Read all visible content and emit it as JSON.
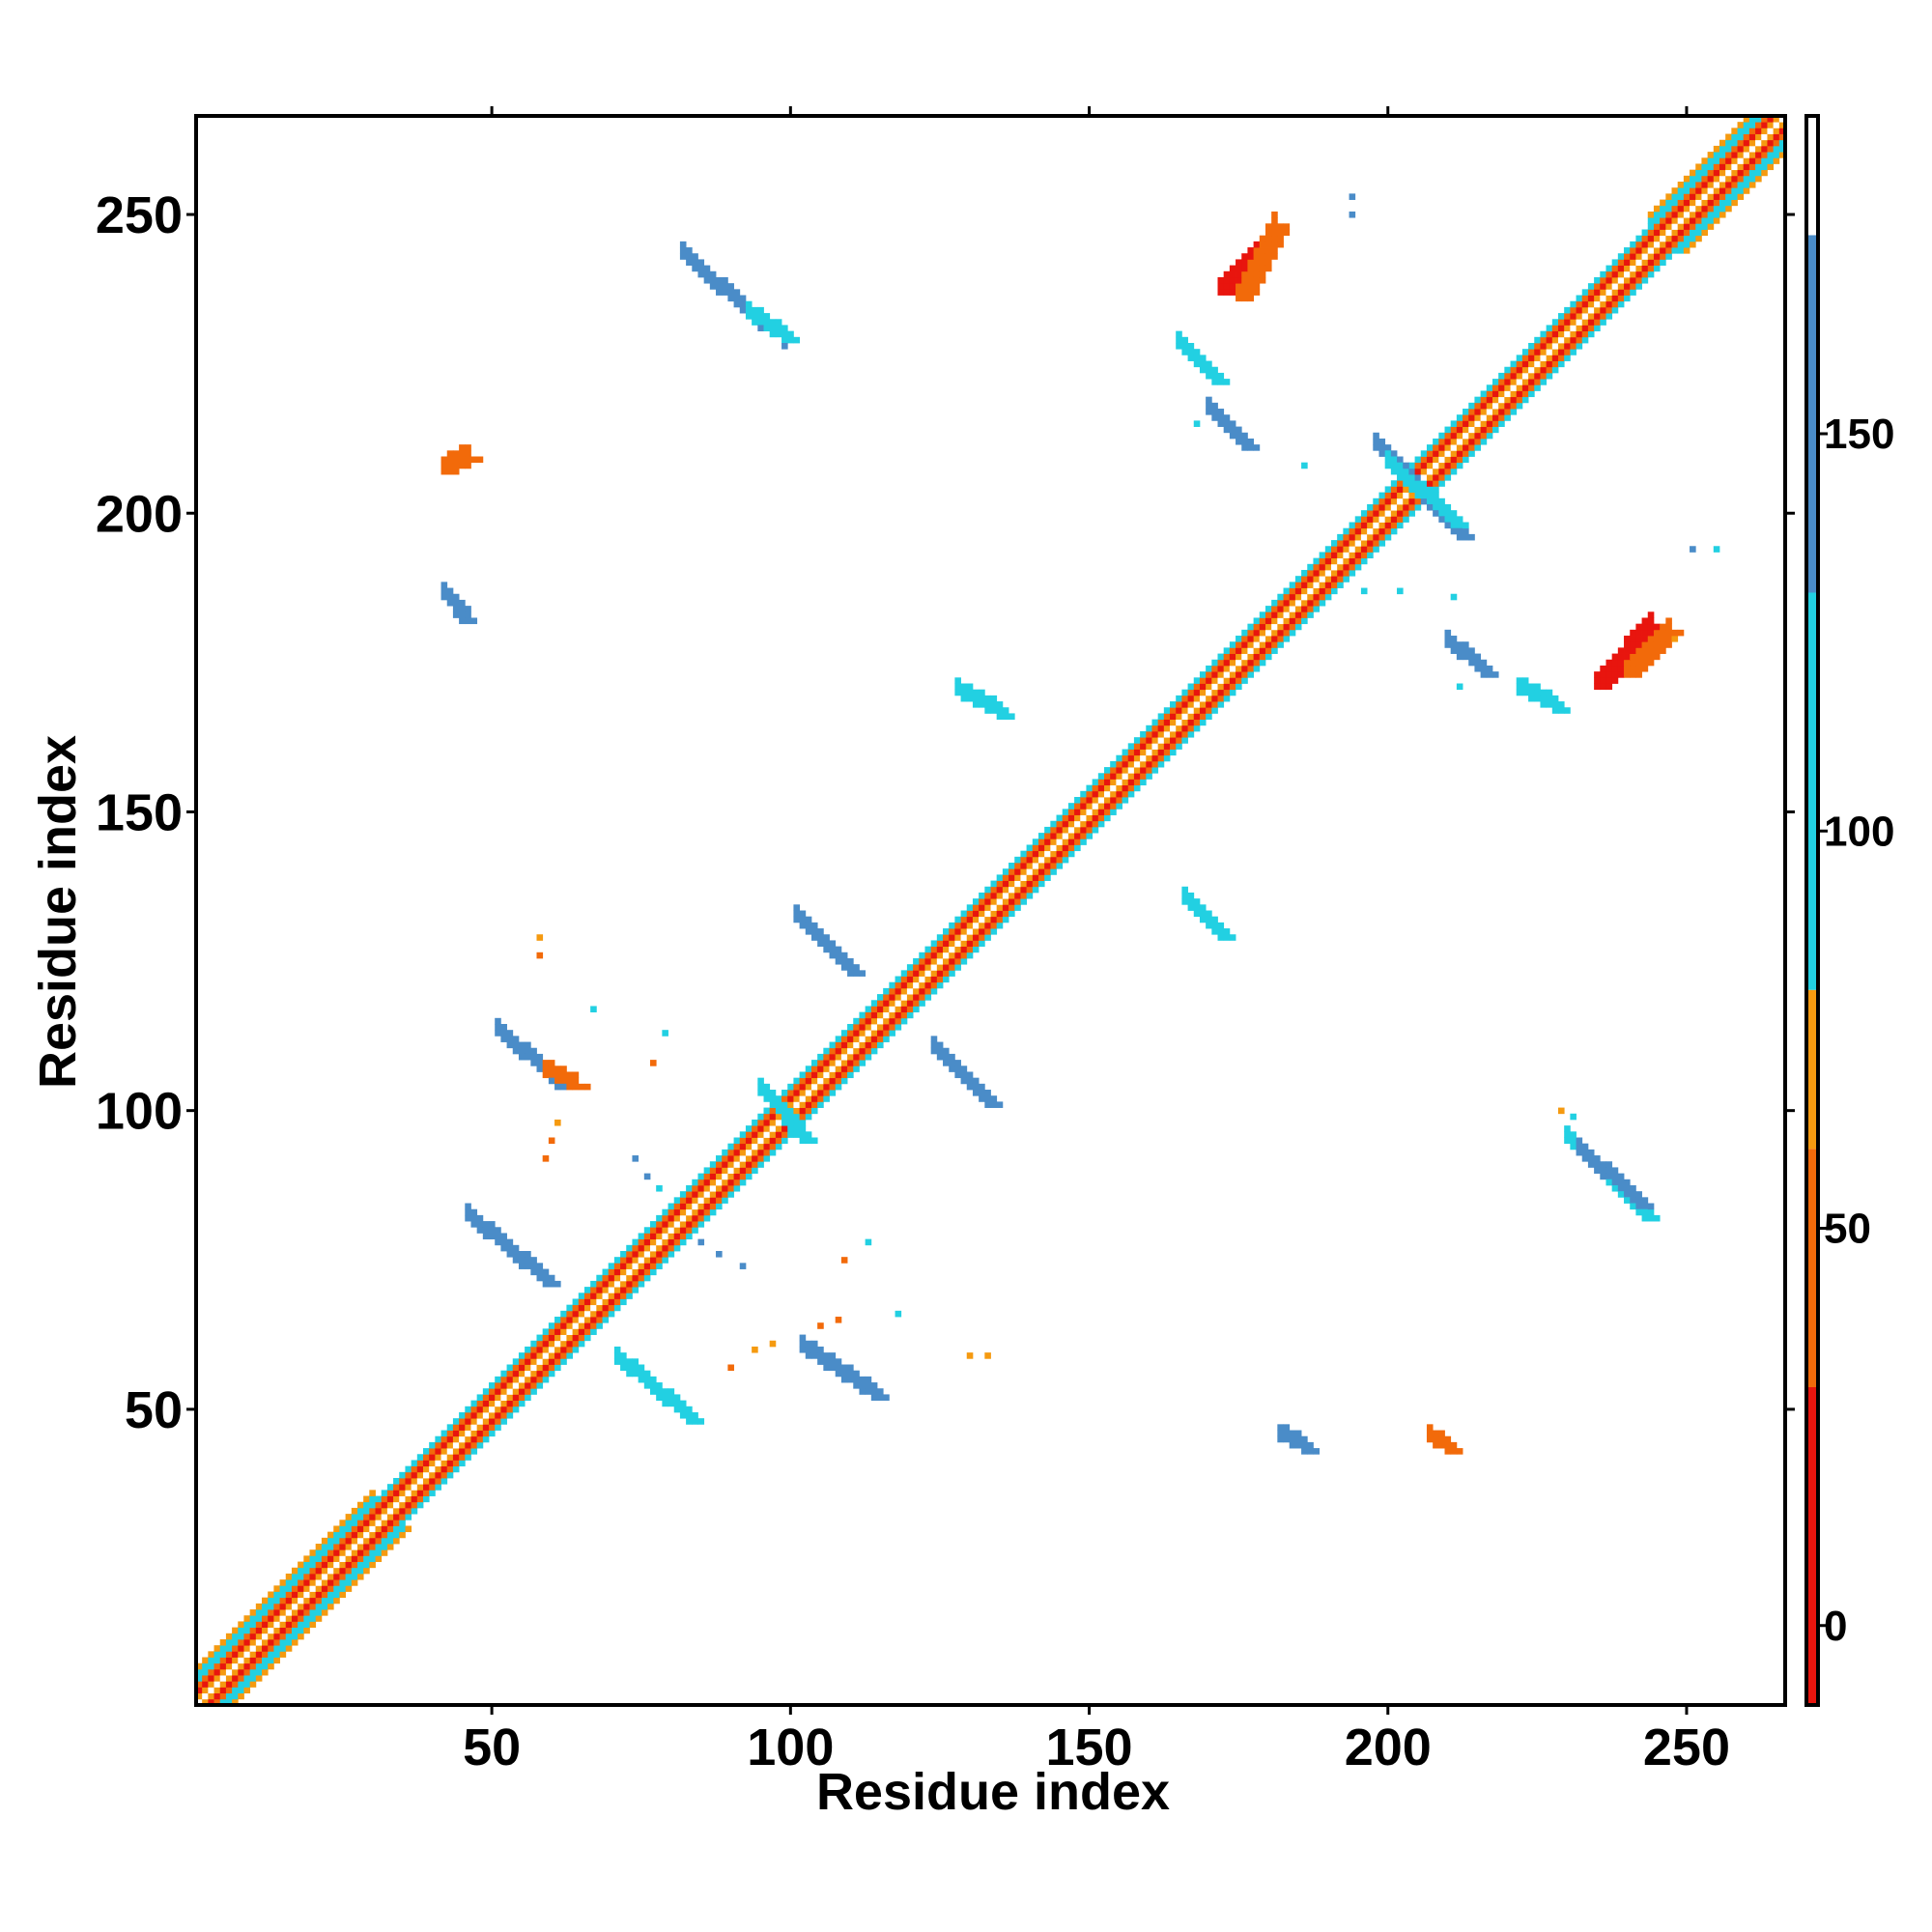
{
  "chart_data": {
    "type": "heatmap",
    "title": "",
    "xlabel": "Residue index",
    "ylabel": "Residue index",
    "xlim": [
      1,
      266
    ],
    "ylim": [
      1,
      266
    ],
    "xticks": [
      50,
      100,
      150,
      200,
      250
    ],
    "yticks": [
      50,
      100,
      150,
      200,
      250
    ],
    "grid": false,
    "colorbar": {
      "range": [
        -10,
        190
      ],
      "ticks": [
        0,
        50,
        100,
        150
      ],
      "bands": [
        {
          "from": -10,
          "to": 30,
          "color": "#e8150e"
        },
        {
          "from": 30,
          "to": 60,
          "color": "#f26a0a"
        },
        {
          "from": 60,
          "to": 80,
          "color": "#f59a10"
        },
        {
          "from": 80,
          "to": 130,
          "color": "#22d0e2"
        },
        {
          "from": 130,
          "to": 175,
          "color": "#4a8cc8"
        },
        {
          "from": 175,
          "to": 190,
          "color": "#ffffff"
        }
      ]
    },
    "diagonal": {
      "start": 1,
      "end": 266,
      "bands": [
        {
          "offset": 0,
          "value": 185
        },
        {
          "offset": 1,
          "value": 65
        },
        {
          "offset": 2,
          "value": 10
        },
        {
          "offset": 3,
          "value": 45
        },
        {
          "offset": 4,
          "value": 105
        }
      ],
      "wide_segments": [
        {
          "from": 1,
          "to": 30,
          "width": 6
        },
        {
          "from": 244,
          "to": 266,
          "width": 6
        }
      ]
    },
    "contact_segments": [
      {
        "x": [
          82,
          95
        ],
        "y": [
          243,
          231
        ],
        "value": 155
      },
      {
        "x": [
          93,
          99
        ],
        "y": [
          233,
          229
        ],
        "value": 105
      },
      {
        "x": [
          172,
          180
        ],
        "y": [
          237,
          245
        ],
        "value": 10
      },
      {
        "x": [
          175,
          181
        ],
        "y": [
          236,
          248
        ],
        "value": 40
      },
      {
        "x": [
          165,
          171
        ],
        "y": [
          228,
          222
        ],
        "value": 105
      },
      {
        "x": [
          170,
          176
        ],
        "y": [
          217,
          211
        ],
        "value": 150
      },
      {
        "x": [
          198,
          212
        ],
        "y": [
          211,
          196
        ],
        "value": 150
      },
      {
        "x": [
          200,
          211
        ],
        "y": [
          208,
          198
        ],
        "value": 105
      },
      {
        "x": [
          42,
          46
        ],
        "y": [
          207,
          209
        ],
        "value": 40
      },
      {
        "x": [
          42,
          45
        ],
        "y": [
          186,
          182
        ],
        "value": 150
      },
      {
        "x": [
          210,
          216
        ],
        "y": [
          178,
          173
        ],
        "value": 150
      },
      {
        "x": [
          222,
          228
        ],
        "y": [
          170,
          167
        ],
        "value": 105
      },
      {
        "x": [
          235,
          244
        ],
        "y": [
          171,
          181
        ],
        "value": 10
      },
      {
        "x": [
          240,
          247
        ],
        "y": [
          173,
          180
        ],
        "value": 40
      },
      {
        "x": [
          128,
          135
        ],
        "y": [
          170,
          166
        ],
        "value": 105
      },
      {
        "x": [
          101,
          110
        ],
        "y": [
          132,
          123
        ],
        "value": 150
      },
      {
        "x": [
          166,
          172
        ],
        "y": [
          135,
          129
        ],
        "value": 105
      },
      {
        "x": [
          124,
          133
        ],
        "y": [
          110,
          101
        ],
        "value": 150
      },
      {
        "x": [
          51,
          61
        ],
        "y": [
          113,
          104
        ],
        "value": 150
      },
      {
        "x": [
          59,
          64
        ],
        "y": [
          106,
          104
        ],
        "value": 30
      },
      {
        "x": [
          46,
          59
        ],
        "y": [
          82,
          71
        ],
        "value": 150
      },
      {
        "x": [
          71,
          83
        ],
        "y": [
          58,
          48
        ],
        "value": 105
      },
      {
        "x": [
          102,
          114
        ],
        "y": [
          60,
          52
        ],
        "value": 150
      },
      {
        "x": [
          230,
          243
        ],
        "y": [
          95,
          82
        ],
        "value": 105
      },
      {
        "x": [
          232,
          242
        ],
        "y": [
          93,
          84
        ],
        "value": 150
      },
      {
        "x": [
          207,
          210
        ],
        "y": [
          45,
          43
        ],
        "value": 40
      },
      {
        "x": [
          182,
          186
        ],
        "y": [
          45,
          43
        ],
        "value": 150
      },
      {
        "x": [
          95,
          102
        ],
        "y": [
          103,
          95
        ],
        "value": 105
      }
    ],
    "contact_points": [
      {
        "x": 194,
        "y": 253,
        "value": 150
      },
      {
        "x": 194,
        "y": 250,
        "value": 150
      },
      {
        "x": 99,
        "y": 231,
        "value": 105
      },
      {
        "x": 99,
        "y": 228,
        "value": 150
      },
      {
        "x": 168,
        "y": 215,
        "value": 105
      },
      {
        "x": 186,
        "y": 208,
        "value": 105
      },
      {
        "x": 196,
        "y": 187,
        "value": 105
      },
      {
        "x": 202,
        "y": 187,
        "value": 105
      },
      {
        "x": 211,
        "y": 186,
        "value": 105
      },
      {
        "x": 212,
        "y": 171,
        "value": 105
      },
      {
        "x": 248,
        "y": 179,
        "value": 65
      },
      {
        "x": 251,
        "y": 194,
        "value": 150
      },
      {
        "x": 255,
        "y": 194,
        "value": 105
      },
      {
        "x": 58,
        "y": 129,
        "value": 65
      },
      {
        "x": 58,
        "y": 126,
        "value": 30
      },
      {
        "x": 67,
        "y": 117,
        "value": 105
      },
      {
        "x": 79,
        "y": 113,
        "value": 105
      },
      {
        "x": 77,
        "y": 108,
        "value": 30
      },
      {
        "x": 61,
        "y": 98,
        "value": 65
      },
      {
        "x": 60,
        "y": 95,
        "value": 30
      },
      {
        "x": 59,
        "y": 92,
        "value": 30
      },
      {
        "x": 74,
        "y": 92,
        "value": 150
      },
      {
        "x": 76,
        "y": 89,
        "value": 150
      },
      {
        "x": 78,
        "y": 87,
        "value": 105
      },
      {
        "x": 85,
        "y": 78,
        "value": 150
      },
      {
        "x": 88,
        "y": 76,
        "value": 150
      },
      {
        "x": 92,
        "y": 74,
        "value": 150
      },
      {
        "x": 113,
        "y": 78,
        "value": 105
      },
      {
        "x": 109,
        "y": 75,
        "value": 30
      },
      {
        "x": 118,
        "y": 66,
        "value": 105
      },
      {
        "x": 90,
        "y": 57,
        "value": 30
      },
      {
        "x": 94,
        "y": 60,
        "value": 65
      },
      {
        "x": 97,
        "y": 61,
        "value": 65
      },
      {
        "x": 105,
        "y": 64,
        "value": 30
      },
      {
        "x": 108,
        "y": 65,
        "value": 30
      },
      {
        "x": 130,
        "y": 59,
        "value": 65
      },
      {
        "x": 133,
        "y": 59,
        "value": 65
      },
      {
        "x": 229,
        "y": 100,
        "value": 65
      },
      {
        "x": 231,
        "y": 99,
        "value": 105
      }
    ]
  }
}
